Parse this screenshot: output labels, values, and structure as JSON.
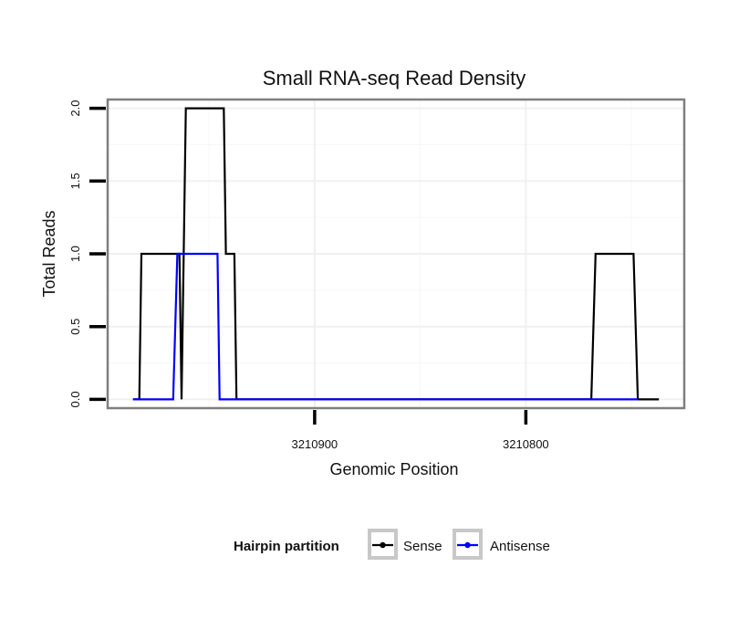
{
  "chart_data": {
    "type": "line",
    "title": "Small RNA-seq Read Density",
    "xlabel": "Genomic Position",
    "ylabel": "Total Reads",
    "x_reversed": true,
    "xlim": [
      3210998,
      3210725
    ],
    "ylim": [
      -0.06,
      2.06
    ],
    "xticks": [
      3210900,
      3210800
    ],
    "xtick_labels": [
      "3210900",
      "3210800"
    ],
    "yticks": [
      0.0,
      0.5,
      1.0,
      1.5,
      2.0
    ],
    "ytick_labels": [
      "0.0",
      "0.5",
      "1.0",
      "1.5",
      "2.0"
    ],
    "grid": true,
    "legend": {
      "title": "Hairpin partition",
      "position": "bottom"
    },
    "series": [
      {
        "name": "Sense",
        "color": "#000000",
        "x": [
          3210986,
          3210983,
          3210982,
          3210966,
          3210964,
          3210963,
          3210961,
          3210960,
          3210943,
          3210942,
          3210941,
          3210938,
          3210937,
          3210936,
          3210769,
          3210767,
          3210749,
          3210747,
          3210737
        ],
        "y": [
          0,
          0,
          1,
          1,
          1,
          0,
          2,
          2,
          2,
          1,
          1,
          1,
          0,
          0,
          0,
          1,
          1,
          0,
          0
        ]
      },
      {
        "name": "Antisense",
        "color": "#0000ff",
        "x": [
          3210986,
          3210967,
          3210965,
          3210946,
          3210945,
          3210937,
          3210769,
          3210747
        ],
        "y": [
          0,
          0,
          1,
          1,
          0,
          0,
          0,
          0
        ]
      }
    ]
  }
}
